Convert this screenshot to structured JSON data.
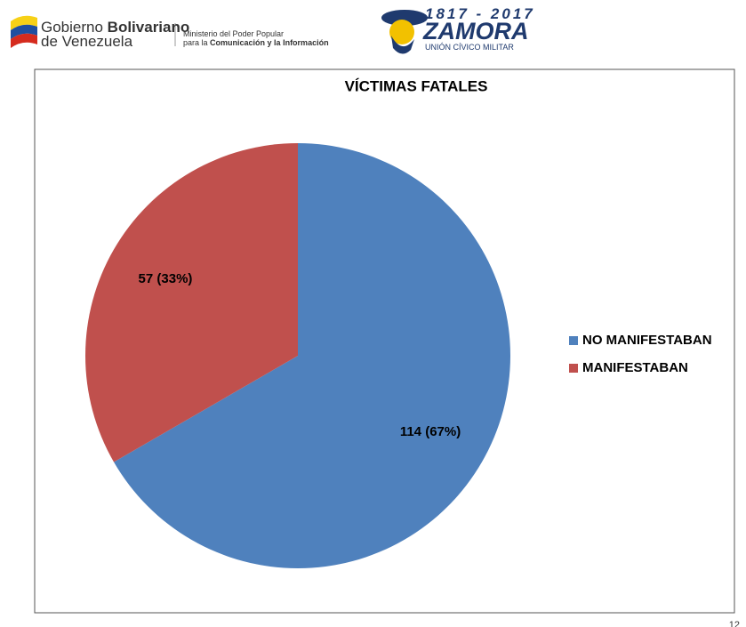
{
  "header": {
    "gov_a": "Gobierno",
    "gov_b": "Bolivariano",
    "gov_c": "de Venezuela",
    "ministry_a": "Ministerio del Poder Popular",
    "ministry_b": "para la",
    "ministry_c": "Comunicación y la Información",
    "years": "1817 - 2017",
    "zamora": "ZAMORA",
    "union": "UNIÓN CÍVICO MILITAR",
    "page_number": "12"
  },
  "chart_data": {
    "type": "pie",
    "title": "VÍCTIMAS FATALES",
    "categories": [
      "NO MANIFESTABAN",
      "MANIFESTABAN"
    ],
    "values": [
      114,
      57
    ],
    "value_labels": [
      "114 (67%)",
      "57 (33%)"
    ],
    "colors": [
      "#4f81bd",
      "#c0504d"
    ],
    "legend": "right"
  }
}
